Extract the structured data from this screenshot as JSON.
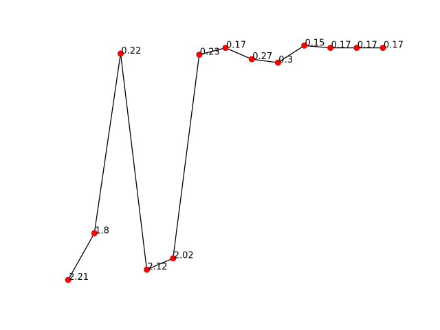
{
  "chart_data": {
    "type": "line",
    "x": [
      1,
      2,
      3,
      4,
      5,
      6,
      7,
      8,
      9,
      10,
      11,
      12,
      13
    ],
    "values": [
      2.21,
      1.8,
      0.22,
      2.12,
      2.02,
      0.23,
      0.17,
      0.27,
      0.3,
      0.15,
      0.17,
      0.17,
      0.17
    ],
    "point_labels": [
      "2.21",
      "1.8",
      "0.22",
      "2.12",
      "2.02",
      "0.23",
      "0.17",
      "0.27",
      "0.3",
      "0.15",
      "0.17",
      "0.17",
      "0.17"
    ],
    "y_axis": "inverted",
    "ylim": [
      2.3,
      0.1
    ],
    "xlim": [
      0.5,
      13.5
    ],
    "axes_visible": false,
    "grid": false,
    "line_color": "#000000",
    "marker_color": "#ff0000",
    "marker": "circle"
  }
}
